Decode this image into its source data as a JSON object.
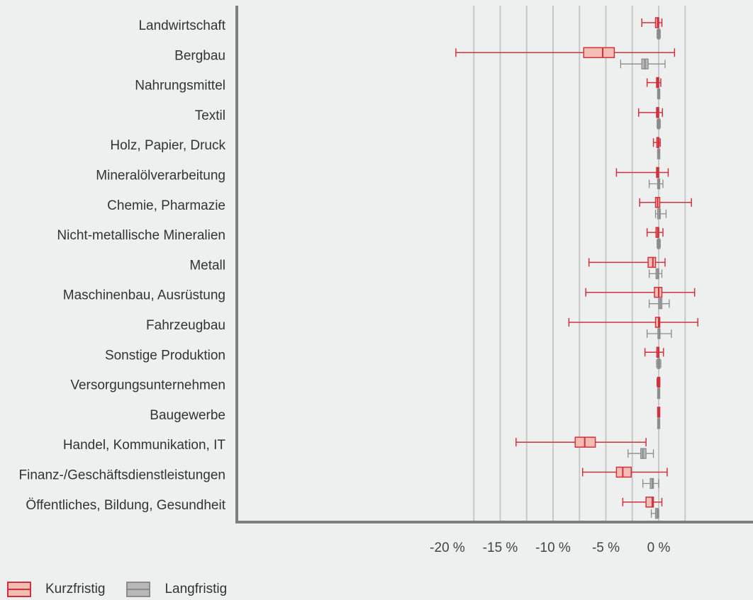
{
  "chart_data": {
    "type": "boxplot",
    "orientation": "horizontal",
    "x_ticks": [
      "-20 %",
      "-15 %",
      "-10 %",
      "-5 %",
      "0 %"
    ],
    "xlim": [
      -20.2,
      4.0
    ],
    "grid": true,
    "legend_position": "bottom-left",
    "colors": {
      "kurz_fill": "#f3bdb3",
      "kurz_stroke": "#d0323d",
      "lang_fill": "#b8b8b8",
      "lang_stroke": "#8c8c8c",
      "grid": "#c8c8c8",
      "axis": "#7f7f7f",
      "background": "#eef0f0"
    },
    "categories": [
      "Landwirtschaft",
      "Bergbau",
      "Nahrungsmittel",
      "Textil",
      "Holz, Papier, Druck",
      "Mineralölverarbeitung",
      "Chemie, Pharmazie",
      "Nicht-metallische Mineralien",
      "Metall",
      "Maschinenbau, Ausrüstung",
      "Fahrzeugbau",
      "Sonstige Produktion",
      "Versorgungsunternehmen",
      "Baugewerbe",
      "Handel, Kommunikation, IT",
      "Finanz-/Geschäftsdienstleistungen",
      "Öffentliches, Bildung, Gesundheit"
    ],
    "series": [
      {
        "name": "Kurzfristig",
        "boxes": [
          {
            "min": -1.6,
            "q1": -0.3,
            "median": -0.1,
            "q3": 0.0,
            "max": 0.3
          },
          {
            "min": -19.2,
            "q1": -7.1,
            "median": -5.3,
            "q3": -4.2,
            "max": 1.5
          },
          {
            "min": -1.1,
            "q1": -0.2,
            "median": -0.1,
            "q3": 0.0,
            "max": 0.2
          },
          {
            "min": -1.9,
            "q1": -0.2,
            "median": -0.1,
            "q3": 0.0,
            "max": 0.35
          },
          {
            "min": -0.5,
            "q1": -0.15,
            "median": -0.05,
            "q3": 0.0,
            "max": 0.15
          },
          {
            "min": -4.0,
            "q1": -0.2,
            "median": -0.1,
            "q3": 0.0,
            "max": 0.9
          },
          {
            "min": -1.8,
            "q1": -0.3,
            "median": -0.1,
            "q3": 0.1,
            "max": 3.1
          },
          {
            "min": -1.1,
            "q1": -0.25,
            "median": -0.1,
            "q3": 0.0,
            "max": 0.4
          },
          {
            "min": -6.6,
            "q1": -1.0,
            "median": -0.55,
            "q3": -0.3,
            "max": 0.6
          },
          {
            "min": -6.9,
            "q1": -0.4,
            "median": 0.0,
            "q3": 0.3,
            "max": 3.4
          },
          {
            "min": -8.5,
            "q1": -0.3,
            "median": 0.0,
            "q3": 0.1,
            "max": 3.7
          },
          {
            "min": -1.3,
            "q1": -0.15,
            "median": -0.05,
            "q3": 0.0,
            "max": 0.45
          },
          {
            "min": -0.15,
            "q1": -0.05,
            "median": 0.0,
            "q3": 0.05,
            "max": 0.1
          },
          {
            "min": -0.05,
            "q1": -0.02,
            "median": 0.0,
            "q3": 0.02,
            "max": 0.05
          },
          {
            "min": -13.5,
            "q1": -7.9,
            "median": -7.0,
            "q3": -6.0,
            "max": -1.2
          },
          {
            "min": -7.2,
            "q1": -4.0,
            "median": -3.4,
            "q3": -2.6,
            "max": 0.8
          },
          {
            "min": -3.4,
            "q1": -1.2,
            "median": -0.6,
            "q3": -0.5,
            "max": 0.3
          }
        ]
      },
      {
        "name": "Langfristig",
        "boxes": [
          {
            "min": -0.15,
            "q1": -0.05,
            "median": 0.0,
            "q3": 0.05,
            "max": 0.15
          },
          {
            "min": -3.6,
            "q1": -1.6,
            "median": -1.3,
            "q3": -1.0,
            "max": 0.6
          },
          {
            "min": -0.1,
            "q1": -0.05,
            "median": 0.0,
            "q3": 0.05,
            "max": 0.1
          },
          {
            "min": -0.15,
            "q1": -0.05,
            "median": 0.0,
            "q3": 0.05,
            "max": 0.15
          },
          {
            "min": -0.1,
            "q1": -0.05,
            "median": 0.0,
            "q3": 0.05,
            "max": 0.1
          },
          {
            "min": -0.9,
            "q1": -0.05,
            "median": 0.0,
            "q3": 0.05,
            "max": 0.4
          },
          {
            "min": -0.3,
            "q1": -0.1,
            "median": 0.05,
            "q3": 0.15,
            "max": 0.7
          },
          {
            "min": -0.15,
            "q1": -0.05,
            "median": 0.0,
            "q3": 0.05,
            "max": 0.15
          },
          {
            "min": -0.9,
            "q1": -0.25,
            "median": -0.1,
            "q3": 0.0,
            "max": 0.3
          },
          {
            "min": -0.9,
            "q1": 0.0,
            "median": 0.15,
            "q3": 0.3,
            "max": 1.0
          },
          {
            "min": -1.1,
            "q1": -0.05,
            "median": 0.05,
            "q3": 0.1,
            "max": 1.2
          },
          {
            "min": -0.2,
            "q1": -0.05,
            "median": 0.0,
            "q3": 0.05,
            "max": 0.2
          },
          {
            "min": -0.05,
            "q1": -0.02,
            "median": 0.0,
            "q3": 0.02,
            "max": 0.05
          },
          {
            "min": -0.03,
            "q1": -0.01,
            "median": 0.0,
            "q3": 0.01,
            "max": 0.03
          },
          {
            "min": -2.9,
            "q1": -1.7,
            "median": -1.5,
            "q3": -1.2,
            "max": -0.5
          },
          {
            "min": -1.5,
            "q1": -0.8,
            "median": -0.6,
            "q3": -0.5,
            "max": 0.0
          },
          {
            "min": -0.7,
            "q1": -0.3,
            "median": -0.15,
            "q3": -0.05,
            "max": 0.0
          }
        ]
      }
    ]
  },
  "legend": {
    "kurz": "Kurzfristig",
    "lang": "Langfristig"
  }
}
